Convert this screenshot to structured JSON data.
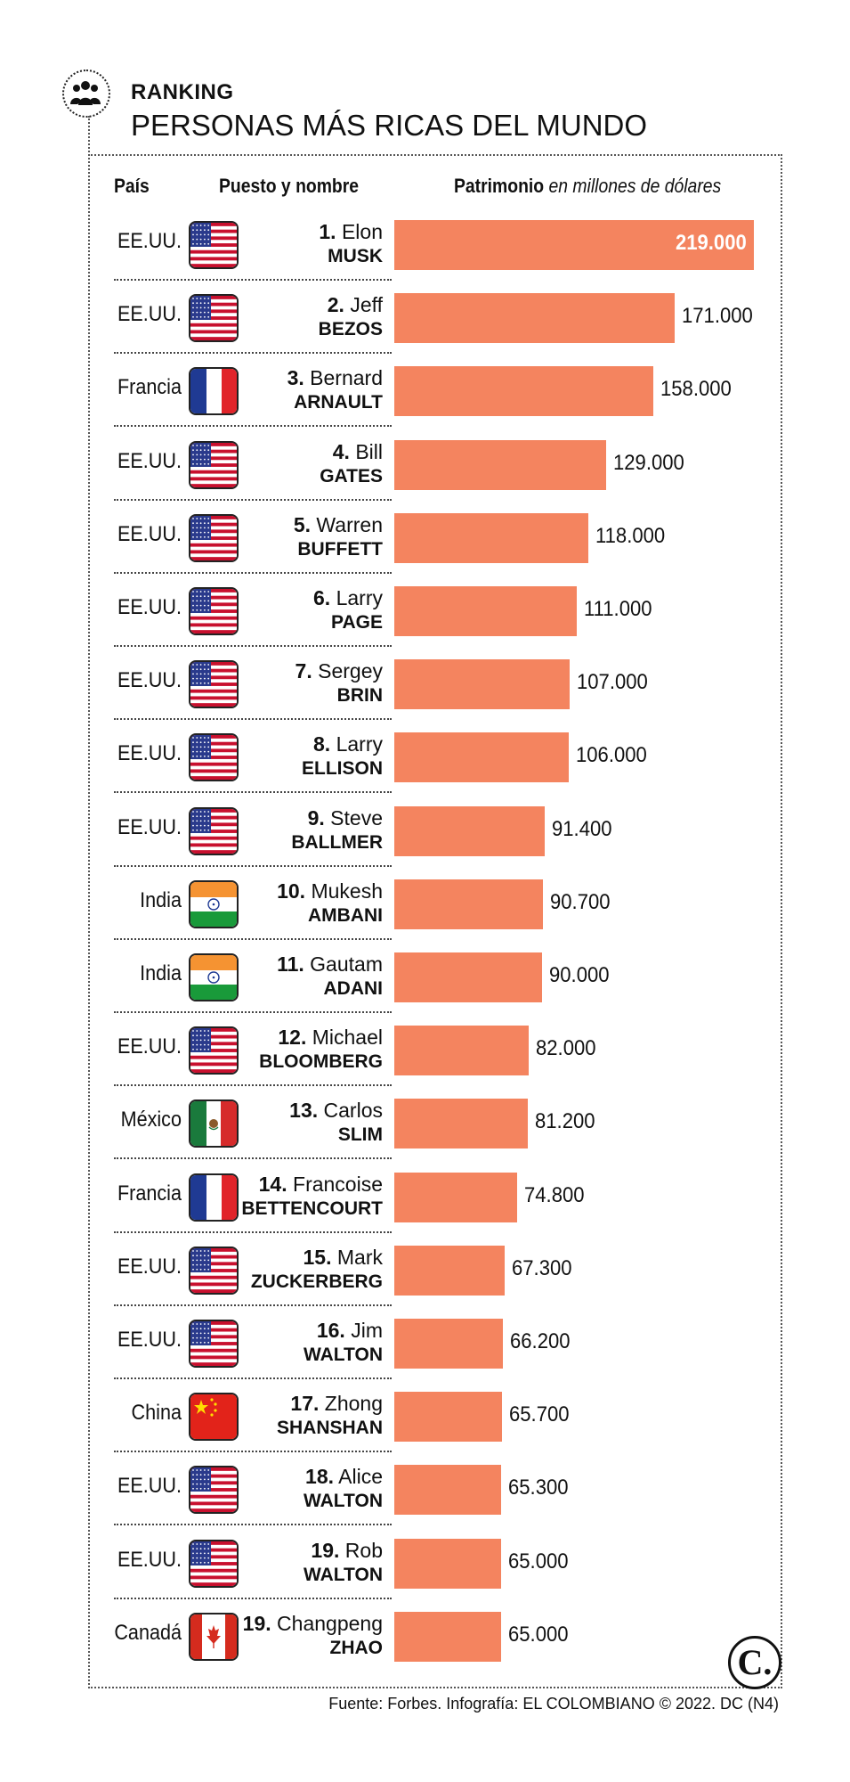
{
  "header": {
    "kicker": "RANKING",
    "title": "PERSONAS MÁS RICAS DEL MUNDO",
    "icon": "people-group-icon"
  },
  "columns": {
    "country": "País",
    "name": "Puesto y nombre",
    "value": "Patrimonio",
    "value_unit": "en millones de dólares"
  },
  "colors": {
    "bar": "#f4845f",
    "text": "#111111",
    "inside_label": "#ffffff"
  },
  "chart_data": {
    "type": "bar",
    "orientation": "horizontal",
    "title": "PERSONAS MÁS RICAS DEL MUNDO",
    "unit": "en millones de dólares",
    "xlim": [
      0,
      219000
    ],
    "rows": [
      {
        "country": "EE.UU.",
        "flag": "us-flag-icon",
        "rank": "1.",
        "first": "Elon",
        "last": "MUSK",
        "value": 219000,
        "label": "219.000"
      },
      {
        "country": "EE.UU.",
        "flag": "us-flag-icon",
        "rank": "2.",
        "first": "Jeff",
        "last": "BEZOS",
        "value": 171000,
        "label": "171.000"
      },
      {
        "country": "Francia",
        "flag": "france-flag-icon",
        "rank": "3.",
        "first": "Bernard",
        "last": "ARNAULT",
        "value": 158000,
        "label": "158.000"
      },
      {
        "country": "EE.UU.",
        "flag": "us-flag-icon",
        "rank": "4.",
        "first": "Bill",
        "last": "GATES",
        "value": 129000,
        "label": "129.000"
      },
      {
        "country": "EE.UU.",
        "flag": "us-flag-icon",
        "rank": "5.",
        "first": "Warren",
        "last": "BUFFETT",
        "value": 118000,
        "label": "118.000"
      },
      {
        "country": "EE.UU.",
        "flag": "us-flag-icon",
        "rank": "6.",
        "first": "Larry",
        "last": "PAGE",
        "value": 111000,
        "label": "111.000"
      },
      {
        "country": "EE.UU.",
        "flag": "us-flag-icon",
        "rank": "7.",
        "first": "Sergey",
        "last": "BRIN",
        "value": 107000,
        "label": "107.000"
      },
      {
        "country": "EE.UU.",
        "flag": "us-flag-icon",
        "rank": "8.",
        "first": "Larry",
        "last": "ELLISON",
        "value": 106000,
        "label": "106.000"
      },
      {
        "country": "EE.UU.",
        "flag": "us-flag-icon",
        "rank": "9.",
        "first": "Steve",
        "last": "BALLMER",
        "value": 91400,
        "label": "91.400"
      },
      {
        "country": "India",
        "flag": "india-flag-icon",
        "rank": "10.",
        "first": "Mukesh",
        "last": "AMBANI",
        "value": 90700,
        "label": "90.700"
      },
      {
        "country": "India",
        "flag": "india-flag-icon",
        "rank": "11.",
        "first": "Gautam",
        "last": "ADANI",
        "value": 90000,
        "label": "90.000"
      },
      {
        "country": "EE.UU.",
        "flag": "us-flag-icon",
        "rank": "12.",
        "first": "Michael",
        "last": "BLOOMBERG",
        "value": 82000,
        "label": "82.000"
      },
      {
        "country": "México",
        "flag": "mexico-flag-icon",
        "rank": "13.",
        "first": "Carlos",
        "last": "SLIM",
        "value": 81200,
        "label": "81.200"
      },
      {
        "country": "Francia",
        "flag": "france-flag-icon",
        "rank": "14.",
        "first": "Francoise",
        "last": "BETTENCOURT",
        "value": 74800,
        "label": "74.800"
      },
      {
        "country": "EE.UU.",
        "flag": "us-flag-icon",
        "rank": "15.",
        "first": "Mark",
        "last": "ZUCKERBERG",
        "value": 67300,
        "label": "67.300"
      },
      {
        "country": "EE.UU.",
        "flag": "us-flag-icon",
        "rank": "16.",
        "first": "Jim",
        "last": "WALTON",
        "value": 66200,
        "label": "66.200"
      },
      {
        "country": "China",
        "flag": "china-flag-icon",
        "rank": "17.",
        "first": "Zhong",
        "last": "SHANSHAN",
        "value": 65700,
        "label": "65.700"
      },
      {
        "country": "EE.UU.",
        "flag": "us-flag-icon",
        "rank": "18.",
        "first": "Alice",
        "last": "WALTON",
        "value": 65300,
        "label": "65.300"
      },
      {
        "country": "EE.UU.",
        "flag": "us-flag-icon",
        "rank": "19.",
        "first": "Rob",
        "last": "WALTON",
        "value": 65000,
        "label": "65.000"
      },
      {
        "country": "Canadá",
        "flag": "canada-flag-icon",
        "rank": "19.",
        "first": "Changpeng",
        "last": "ZHAO",
        "value": 65000,
        "label": "65.000"
      }
    ]
  },
  "footer": {
    "logo_text": "C.",
    "source": "Fuente: Forbes. Infografía: EL COLOMBIANO © 2022. DC (N4)"
  }
}
